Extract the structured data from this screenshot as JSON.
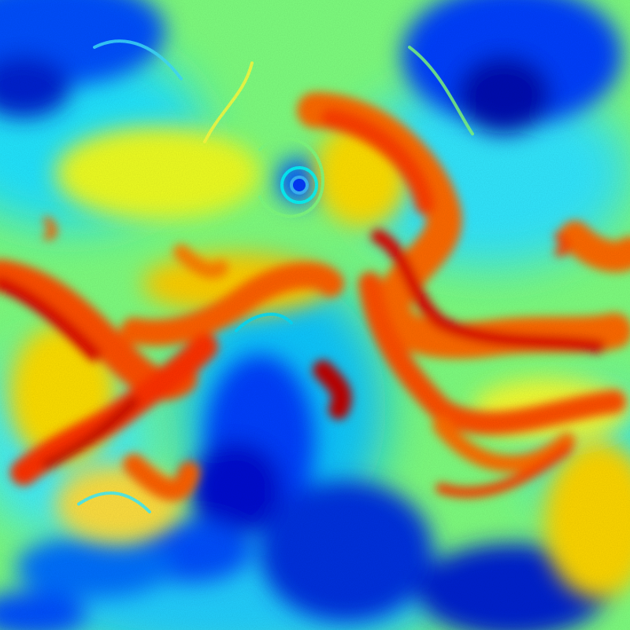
{
  "image": {
    "subject": "turbulent-scalar-field",
    "colormap": {
      "name": "jet",
      "stops": [
        "#00008f",
        "#0000ff",
        "#0080ff",
        "#00ffff",
        "#80ff80",
        "#ffff00",
        "#ff8000",
        "#ff0000",
        "#800000"
      ]
    },
    "background": "#00008f"
  }
}
